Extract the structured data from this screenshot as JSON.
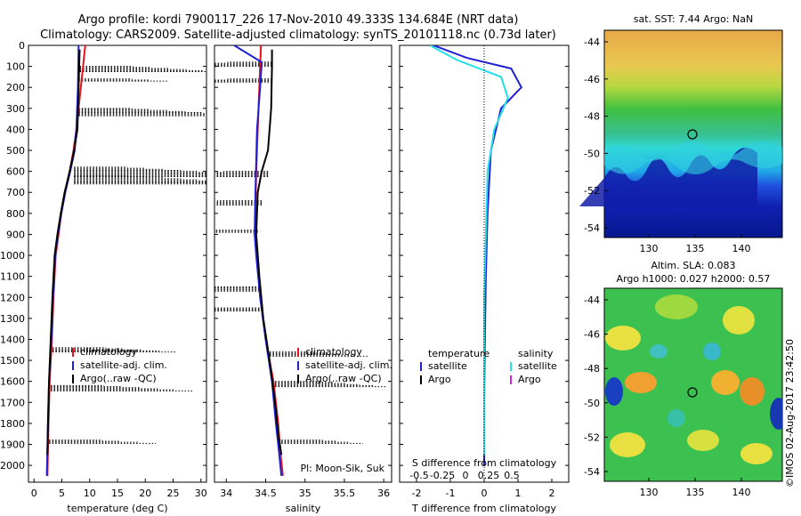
{
  "header": {
    "line1": "Argo profile: kordi 7900117_226 17-Nov-2010 49.333S 134.684E (NRT data)",
    "line2": "Climatology: CARS2009. Satellite-adjusted climatology: synTS_20101118.nc (0.73d later)"
  },
  "colors": {
    "climatology": "#e8141c",
    "satellite": "#1f1fd6",
    "argo": "#000000",
    "sal_satellite": "#22e0e8",
    "sal_argo": "#e020e0"
  },
  "chart_data": [
    {
      "type": "line",
      "panel": "temperature",
      "xlabel": "temperature (deg C)",
      "xlim": [
        -1,
        31
      ],
      "xticks": [
        0,
        5,
        10,
        15,
        20,
        25,
        30
      ],
      "ylim": [
        2080,
        0
      ],
      "yticks": [
        0,
        100,
        200,
        300,
        400,
        500,
        600,
        700,
        800,
        900,
        1000,
        1100,
        1200,
        1300,
        1400,
        1500,
        1600,
        1700,
        1800,
        1900,
        2000
      ],
      "legend": [
        "climatology",
        "satellite-adj. clim.",
        "Argo(..raw -QC)"
      ],
      "series": [
        {
          "name": "climatology",
          "x": [
            9.2,
            8.4,
            7.6,
            7.1,
            6.4,
            5.6,
            4.9,
            4.4,
            3.9,
            3.5,
            3.2,
            2.8,
            2.6,
            2.4
          ],
          "y": [
            0,
            200,
            400,
            500,
            600,
            700,
            800,
            900,
            1000,
            1200,
            1400,
            1600,
            1800,
            2050
          ]
        },
        {
          "name": "satellite-adj. clim.",
          "x": [
            8.0,
            7.9,
            7.6,
            7.3,
            6.5,
            5.6,
            4.9,
            4.3,
            3.8,
            3.4,
            3.1,
            2.7,
            2.5,
            2.3
          ],
          "y": [
            0,
            200,
            400,
            500,
            600,
            700,
            800,
            900,
            1000,
            1200,
            1400,
            1600,
            1800,
            2050
          ]
        },
        {
          "name": "Argo(..raw -QC)",
          "x": [
            8.2,
            8.0,
            7.8,
            7.2,
            6.4,
            5.5,
            4.8,
            4.2,
            3.7,
            3.3,
            3.0,
            2.7,
            2.5,
            2.4
          ],
          "y": [
            20,
            200,
            400,
            500,
            600,
            700,
            800,
            900,
            1000,
            1200,
            1400,
            1600,
            1800,
            1950
          ]
        }
      ]
    },
    {
      "type": "line",
      "panel": "salinity",
      "xlabel": "salinity",
      "xlim": [
        33.85,
        36.1
      ],
      "xticks": [
        34,
        34.5,
        35,
        35.5,
        36
      ],
      "ylim": [
        2080,
        0
      ],
      "legend": [
        "climatology",
        "satellite-adj. clim.",
        "Argo(..raw -QC)"
      ],
      "annotation": "Pl: Moon-Sik, Suk",
      "series": [
        {
          "name": "climatology",
          "x": [
            34.44,
            34.42,
            34.4,
            34.38,
            34.37,
            34.37,
            34.39,
            34.43,
            34.5,
            34.6,
            34.66,
            34.69,
            34.72
          ],
          "y": [
            0,
            200,
            400,
            600,
            800,
            900,
            1000,
            1200,
            1400,
            1600,
            1800,
            1950,
            2050
          ]
        },
        {
          "name": "satellite-adj. clim.",
          "x": [
            34.1,
            34.45,
            34.43,
            34.39,
            34.37,
            34.36,
            34.38,
            34.43,
            34.5,
            34.58,
            34.63,
            34.66,
            34.7
          ],
          "y": [
            0,
            80,
            200,
            400,
            700,
            900,
            1000,
            1200,
            1400,
            1600,
            1800,
            1900,
            2050
          ]
        },
        {
          "name": "Argo(..raw -QC)",
          "x": [
            34.58,
            34.58,
            34.57,
            34.53,
            34.45,
            34.4,
            34.38,
            34.42,
            34.47,
            34.55,
            34.62,
            34.66,
            34.7
          ],
          "y": [
            20,
            100,
            300,
            500,
            600,
            700,
            900,
            1100,
            1300,
            1500,
            1700,
            1850,
            1950
          ]
        }
      ]
    },
    {
      "type": "line",
      "panel": "difference",
      "xlabel": "T difference from climatology",
      "xlabel_top": "S difference from climatology",
      "xlim": [
        -2.5,
        2.5
      ],
      "xticks": [
        -2,
        -1,
        0,
        1,
        2
      ],
      "xticks_top": [
        "-0.5",
        "-0.25",
        "0",
        "0.25",
        "0.5"
      ],
      "ylim": [
        2080,
        0
      ],
      "legend": {
        "temperature": [
          "satellite",
          "Argo"
        ],
        "salinity": [
          "satellite",
          "Argo"
        ]
      },
      "series": [
        {
          "name": "temperature satellite",
          "x": [
            -1.5,
            -0.5,
            0.8,
            1.1,
            0.5,
            0.2,
            0.1,
            0.05,
            0.02,
            0.0,
            0.0
          ],
          "y": [
            0,
            60,
            110,
            200,
            300,
            500,
            800,
            1100,
            1400,
            1700,
            2000
          ]
        },
        {
          "name": "salinity satellite",
          "x": [
            -1.6,
            -0.8,
            0.5,
            0.7,
            0.3,
            0.1,
            0.05,
            0.0,
            0.0,
            0.0
          ],
          "y": [
            0,
            70,
            150,
            250,
            400,
            600,
            900,
            1200,
            1600,
            1950
          ]
        }
      ]
    }
  ],
  "maps": {
    "top": {
      "title": "sat. SST: 7.44  Argo: NaN",
      "xticks": [
        "130",
        "135",
        "140"
      ],
      "yticks": [
        "-44",
        "-46",
        "-48",
        "-50",
        "-52",
        "-54"
      ]
    },
    "bottom": {
      "title1": "Altim. SLA: 0.083",
      "title2": "Argo h1000: 0.027 h2000: 0.57",
      "xticks": [
        "130",
        "135",
        "140"
      ],
      "yticks": [
        "-44",
        "-46",
        "-48",
        "-50",
        "-52",
        "-54"
      ]
    },
    "credit": "©IMOS 02-Aug-2017 23:42:50"
  }
}
